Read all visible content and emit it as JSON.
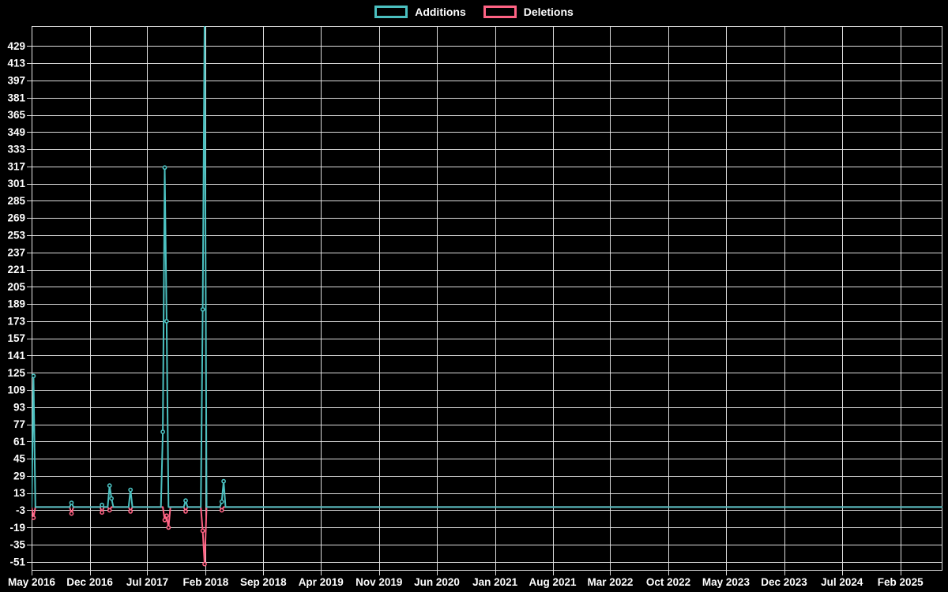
{
  "colors": {
    "background": "#000000",
    "text": "#ffffff",
    "grid": "#e8e8e8",
    "additions": "#4bc0c0",
    "deletions": "#ff6384"
  },
  "legend": {
    "items": [
      {
        "label": "Additions",
        "color": "#4bc0c0"
      },
      {
        "label": "Deletions",
        "color": "#ff6384"
      }
    ]
  },
  "chart_data": {
    "type": "line",
    "title": "",
    "legend_position": "top",
    "grid": true,
    "x_axis": {
      "start_date": "2016-05-01",
      "end_date": "2025-07-06",
      "sampling": "weekly",
      "ticks": [
        {
          "label": "May 2016",
          "date": "2016-05-01"
        },
        {
          "label": "Dec 2016",
          "date": "2016-12-01"
        },
        {
          "label": "Jul 2017",
          "date": "2017-07-01"
        },
        {
          "label": "Feb 2018",
          "date": "2018-02-01"
        },
        {
          "label": "Sep 2018",
          "date": "2018-09-01"
        },
        {
          "label": "Apr 2019",
          "date": "2019-04-01"
        },
        {
          "label": "Nov 2019",
          "date": "2019-11-01"
        },
        {
          "label": "Jun 2020",
          "date": "2020-06-01"
        },
        {
          "label": "Jan 2021",
          "date": "2021-01-01"
        },
        {
          "label": "Aug 2021",
          "date": "2021-08-01"
        },
        {
          "label": "Mar 2022",
          "date": "2022-03-01"
        },
        {
          "label": "Oct 2022",
          "date": "2022-10-01"
        },
        {
          "label": "May 2023",
          "date": "2023-05-01"
        },
        {
          "label": "Dec 2023",
          "date": "2023-12-01"
        },
        {
          "label": "Jul 2024",
          "date": "2024-07-01"
        },
        {
          "label": "Feb 2025",
          "date": "2025-02-01"
        }
      ]
    },
    "y_axis": {
      "ticks": [
        429,
        413,
        397,
        381,
        365,
        349,
        333,
        317,
        301,
        285,
        269,
        253,
        237,
        221,
        205,
        189,
        173,
        157,
        141,
        125,
        109,
        93,
        77,
        61,
        45,
        29,
        13,
        -3,
        -19,
        -35,
        -51
      ],
      "tick_step": 16,
      "render_range": [
        -59.2,
        447.7
      ]
    },
    "series": [
      {
        "name": "Additions",
        "color": "#4bc0c0",
        "baseline": 0,
        "note": "weekly values; every week not listed here is 0",
        "points_nonzero": [
          [
            "2016-05-08",
            122
          ],
          [
            "2016-09-25",
            4
          ],
          [
            "2017-01-15",
            2
          ],
          [
            "2017-02-12",
            20
          ],
          [
            "2017-02-19",
            8
          ],
          [
            "2017-04-30",
            16
          ],
          [
            "2017-08-27",
            70
          ],
          [
            "2017-09-03",
            316
          ],
          [
            "2017-09-10",
            173
          ],
          [
            "2017-11-19",
            6
          ],
          [
            "2018-01-21",
            184
          ],
          [
            "2018-01-28",
            457
          ],
          [
            "2018-04-01",
            5
          ],
          [
            "2018-04-08",
            24
          ]
        ],
        "clipped_spike": {
          "date": "2018-01-28",
          "clipped_at_top": true
        }
      },
      {
        "name": "Deletions",
        "color": "#ff6384",
        "baseline": 0,
        "note": "weekly values; every week not listed here is 0",
        "points_nonzero": [
          [
            "2016-05-08",
            -10
          ],
          [
            "2016-09-25",
            -6
          ],
          [
            "2017-01-15",
            -5
          ],
          [
            "2017-02-12",
            -3
          ],
          [
            "2017-04-30",
            -4
          ],
          [
            "2017-09-03",
            -12
          ],
          [
            "2017-09-10",
            -8
          ],
          [
            "2017-09-17",
            -19
          ],
          [
            "2017-11-19",
            -4
          ],
          [
            "2018-01-21",
            -22
          ],
          [
            "2018-01-28",
            -53
          ],
          [
            "2018-04-01",
            -3
          ]
        ]
      }
    ]
  }
}
